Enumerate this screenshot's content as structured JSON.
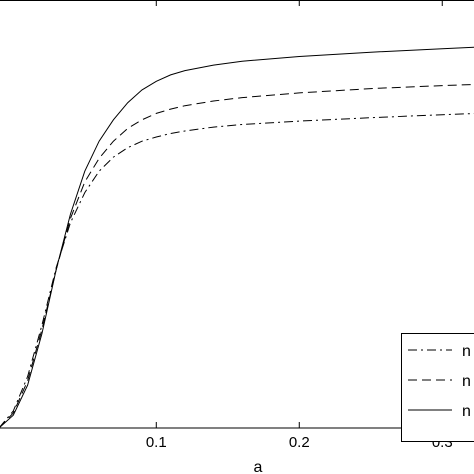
{
  "chart_data": {
    "type": "line",
    "xlabel": "a",
    "ylabel": "",
    "xlim": [
      -0.01,
      0.325
    ],
    "ylim": [
      0,
      1
    ],
    "xticks": [
      0.1,
      0.2,
      0.3
    ],
    "xtick_labels": [
      "0.1",
      "0.2",
      "0.3"
    ],
    "grid": false,
    "legend": {
      "placement": "bottom-right",
      "entries": [
        {
          "label": "n",
          "style": "dashdot"
        },
        {
          "label": "n",
          "style": "dashed"
        },
        {
          "label": "n",
          "style": "solid"
        }
      ]
    },
    "series": [
      {
        "style": "solid",
        "x": [
          -0.01,
          0.0,
          0.01,
          0.02,
          0.03,
          0.04,
          0.05,
          0.06,
          0.07,
          0.08,
          0.09,
          0.1,
          0.11,
          0.12,
          0.14,
          0.16,
          0.2,
          0.25,
          0.3,
          0.325
        ],
        "y": [
          0.0,
          0.03,
          0.1,
          0.22,
          0.37,
          0.5,
          0.6,
          0.67,
          0.72,
          0.76,
          0.79,
          0.81,
          0.825,
          0.835,
          0.848,
          0.857,
          0.868,
          0.878,
          0.886,
          0.89
        ]
      },
      {
        "style": "dashed",
        "x": [
          -0.01,
          0.0,
          0.01,
          0.02,
          0.03,
          0.04,
          0.05,
          0.06,
          0.07,
          0.08,
          0.09,
          0.1,
          0.11,
          0.12,
          0.14,
          0.16,
          0.2,
          0.25,
          0.3,
          0.325
        ],
        "y": [
          0.0,
          0.035,
          0.11,
          0.23,
          0.37,
          0.49,
          0.575,
          0.63,
          0.67,
          0.7,
          0.72,
          0.735,
          0.745,
          0.753,
          0.764,
          0.772,
          0.783,
          0.793,
          0.8,
          0.803
        ]
      },
      {
        "style": "dashdot",
        "x": [
          -0.01,
          0.0,
          0.01,
          0.02,
          0.03,
          0.04,
          0.05,
          0.06,
          0.07,
          0.08,
          0.09,
          0.1,
          0.11,
          0.12,
          0.14,
          0.16,
          0.2,
          0.25,
          0.3,
          0.325
        ],
        "y": [
          0.0,
          0.04,
          0.12,
          0.24,
          0.375,
          0.48,
          0.55,
          0.6,
          0.633,
          0.655,
          0.67,
          0.68,
          0.688,
          0.694,
          0.703,
          0.709,
          0.717,
          0.725,
          0.732,
          0.735
        ]
      }
    ]
  }
}
